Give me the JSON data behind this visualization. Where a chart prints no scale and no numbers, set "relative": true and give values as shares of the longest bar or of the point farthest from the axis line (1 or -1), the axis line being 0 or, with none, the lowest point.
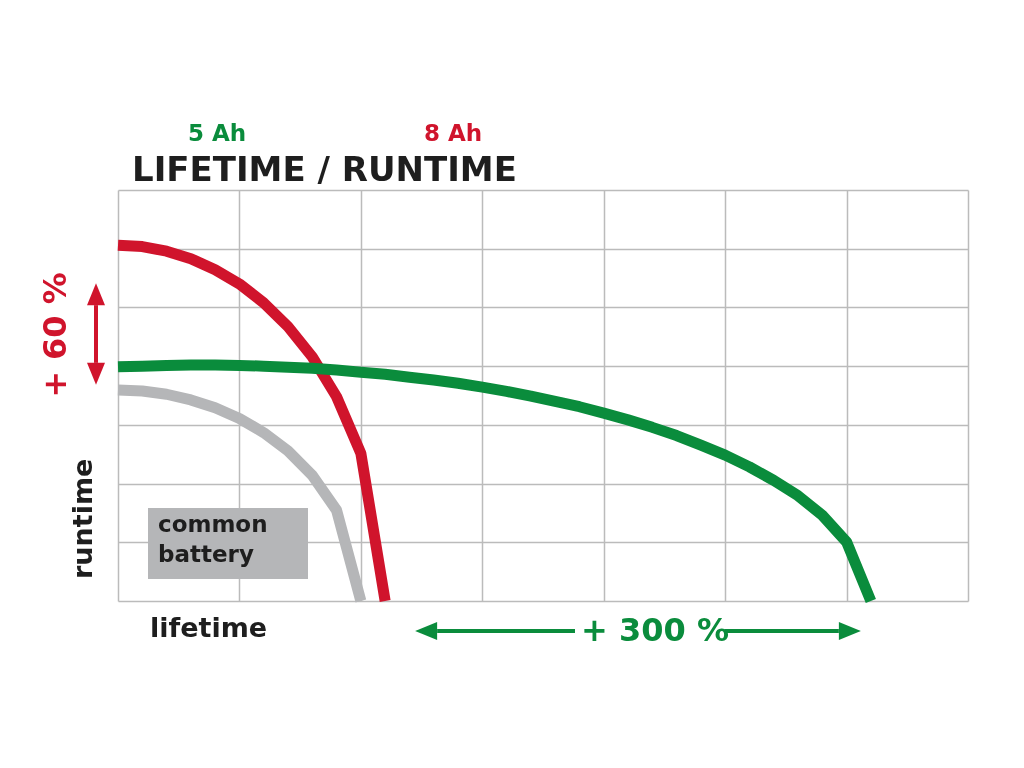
{
  "chart_data": {
    "type": "line",
    "relative": true,
    "title": "LIFETIME / RUNTIME",
    "xlabel": "lifetime",
    "ylabel": "runtime",
    "grid": true,
    "legend": false,
    "categories": [
      null,
      null,
      null,
      null,
      null,
      null,
      null,
      null,
      null,
      null,
      null,
      null,
      null,
      null,
      null,
      null,
      null,
      null,
      null,
      null,
      null,
      null,
      null,
      null,
      null,
      null,
      null,
      null,
      null,
      null,
      null,
      null,
      null,
      null,
      null,
      null
    ],
    "series": [
      {
        "name": "common battery",
        "color": "#b5b6b8",
        "values": [
          0.593,
          0.59,
          0.581,
          0.565,
          0.543,
          0.513,
          0.473,
          0.422,
          0.353,
          0.255,
          0,
          null,
          null,
          null,
          null,
          null,
          null,
          null,
          null,
          null,
          null,
          null,
          null,
          null,
          null,
          null,
          null,
          null,
          null,
          null,
          null,
          null,
          null,
          null,
          null,
          null
        ]
      },
      {
        "name": "8 Ah",
        "color": "#d0142c",
        "values": [
          1,
          0.996,
          0.983,
          0.962,
          0.931,
          0.891,
          0.838,
          0.771,
          0.686,
          0.574,
          0.415,
          0,
          null,
          null,
          null,
          null,
          null,
          null,
          null,
          null,
          null,
          null,
          null,
          null,
          null,
          null,
          null,
          null,
          null,
          null,
          null,
          null,
          null,
          null,
          null,
          null
        ]
      },
      {
        "name": "5 Ah",
        "color": "#0a8c3c",
        "values": [
          0.658,
          0.66,
          0.662,
          0.663,
          0.663,
          0.662,
          0.66,
          0.657,
          0.654,
          0.649,
          0.643,
          0.637,
          0.629,
          0.621,
          0.612,
          0.601,
          0.589,
          0.576,
          0.561,
          0.546,
          0.528,
          0.509,
          0.488,
          0.465,
          0.438,
          0.41,
          0.377,
          0.339,
          0.296,
          0.241,
          0.166,
          0,
          null,
          null,
          null,
          null
        ]
      }
    ],
    "annotations": [
      "+ 60 %",
      "+ 300 %"
    ]
  }
}
